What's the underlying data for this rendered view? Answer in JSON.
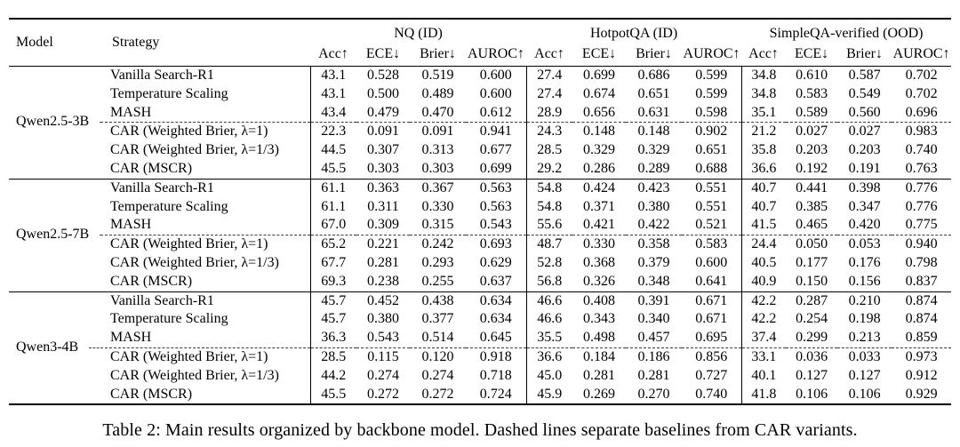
{
  "table": {
    "caption": "Table 2: Main results organized by backbone model. Dashed lines separate baselines from CAR variants.",
    "col_model": "Model",
    "col_strategy": "Strategy",
    "groups_header": [
      {
        "label": "NQ (ID)"
      },
      {
        "label": "HotpotQA (ID)"
      },
      {
        "label": "SimpleQA-verified (OOD)"
      }
    ],
    "metrics": [
      "Acc↑",
      "ECE↓",
      "Brier↓",
      "AUROC↑"
    ],
    "model_groups": [
      {
        "model": "Qwen2.5-3B",
        "rows": [
          {
            "strategy": "Vanilla Search-R1",
            "values": [
              "43.1",
              "0.528",
              "0.519",
              "0.600",
              "27.4",
              "0.699",
              "0.686",
              "0.599",
              "34.8",
              "0.610",
              "0.587",
              "0.702"
            ]
          },
          {
            "strategy": "Temperature Scaling",
            "values": [
              "43.1",
              "0.500",
              "0.489",
              "0.600",
              "27.4",
              "0.674",
              "0.651",
              "0.599",
              "34.8",
              "0.583",
              "0.549",
              "0.702"
            ]
          },
          {
            "strategy": "MASH",
            "values": [
              "43.4",
              "0.479",
              "0.470",
              "0.612",
              "28.9",
              "0.656",
              "0.631",
              "0.598",
              "35.1",
              "0.589",
              "0.560",
              "0.696"
            ]
          },
          {
            "strategy": "CAR (Weighted Brier, λ=1)",
            "values": [
              "22.3",
              "0.091",
              "0.091",
              "0.941",
              "24.3",
              "0.148",
              "0.148",
              "0.902",
              "21.2",
              "0.027",
              "0.027",
              "0.983"
            ]
          },
          {
            "strategy": "CAR (Weighted Brier, λ=1/3)",
            "values": [
              "44.5",
              "0.307",
              "0.313",
              "0.677",
              "28.5",
              "0.329",
              "0.329",
              "0.651",
              "35.8",
              "0.203",
              "0.203",
              "0.740"
            ]
          },
          {
            "strategy": "CAR (MSCR)",
            "values": [
              "45.5",
              "0.303",
              "0.303",
              "0.699",
              "29.2",
              "0.286",
              "0.289",
              "0.688",
              "36.6",
              "0.192",
              "0.191",
              "0.763"
            ]
          }
        ]
      },
      {
        "model": "Qwen2.5-7B",
        "rows": [
          {
            "strategy": "Vanilla Search-R1",
            "values": [
              "61.1",
              "0.363",
              "0.367",
              "0.563",
              "54.8",
              "0.424",
              "0.423",
              "0.551",
              "40.7",
              "0.441",
              "0.398",
              "0.776"
            ]
          },
          {
            "strategy": "Temperature Scaling",
            "values": [
              "61.1",
              "0.311",
              "0.330",
              "0.563",
              "54.8",
              "0.371",
              "0.380",
              "0.551",
              "40.7",
              "0.385",
              "0.347",
              "0.776"
            ]
          },
          {
            "strategy": "MASH",
            "values": [
              "67.0",
              "0.309",
              "0.315",
              "0.543",
              "55.6",
              "0.421",
              "0.422",
              "0.521",
              "41.5",
              "0.465",
              "0.420",
              "0.775"
            ]
          },
          {
            "strategy": "CAR (Weighted Brier, λ=1)",
            "values": [
              "65.2",
              "0.221",
              "0.242",
              "0.693",
              "48.7",
              "0.330",
              "0.358",
              "0.583",
              "24.4",
              "0.050",
              "0.053",
              "0.940"
            ]
          },
          {
            "strategy": "CAR (Weighted Brier, λ=1/3)",
            "values": [
              "67.7",
              "0.281",
              "0.293",
              "0.629",
              "52.8",
              "0.368",
              "0.379",
              "0.600",
              "40.5",
              "0.177",
              "0.176",
              "0.798"
            ]
          },
          {
            "strategy": "CAR (MSCR)",
            "values": [
              "69.3",
              "0.238",
              "0.255",
              "0.637",
              "56.8",
              "0.326",
              "0.348",
              "0.641",
              "40.9",
              "0.150",
              "0.156",
              "0.837"
            ]
          }
        ]
      },
      {
        "model": "Qwen3-4B",
        "rows": [
          {
            "strategy": "Vanilla Search-R1",
            "values": [
              "45.7",
              "0.452",
              "0.438",
              "0.634",
              "46.6",
              "0.408",
              "0.391",
              "0.671",
              "42.2",
              "0.287",
              "0.210",
              "0.874"
            ]
          },
          {
            "strategy": "Temperature Scaling",
            "values": [
              "45.7",
              "0.380",
              "0.377",
              "0.634",
              "46.6",
              "0.343",
              "0.340",
              "0.671",
              "42.2",
              "0.254",
              "0.198",
              "0.874"
            ]
          },
          {
            "strategy": "MASH",
            "values": [
              "36.3",
              "0.543",
              "0.514",
              "0.645",
              "35.5",
              "0.498",
              "0.457",
              "0.695",
              "37.4",
              "0.299",
              "0.213",
              "0.859"
            ]
          },
          {
            "strategy": "CAR (Weighted Brier, λ=1)",
            "values": [
              "28.5",
              "0.115",
              "0.120",
              "0.918",
              "36.6",
              "0.184",
              "0.186",
              "0.856",
              "33.1",
              "0.036",
              "0.033",
              "0.973"
            ]
          },
          {
            "strategy": "CAR (Weighted Brier, λ=1/3)",
            "values": [
              "44.2",
              "0.274",
              "0.274",
              "0.718",
              "45.0",
              "0.281",
              "0.281",
              "0.727",
              "40.1",
              "0.127",
              "0.127",
              "0.912"
            ]
          },
          {
            "strategy": "CAR (MSCR)",
            "values": [
              "45.5",
              "0.272",
              "0.272",
              "0.724",
              "45.9",
              "0.269",
              "0.270",
              "0.740",
              "41.8",
              "0.106",
              "0.106",
              "0.929"
            ]
          }
        ]
      }
    ]
  }
}
